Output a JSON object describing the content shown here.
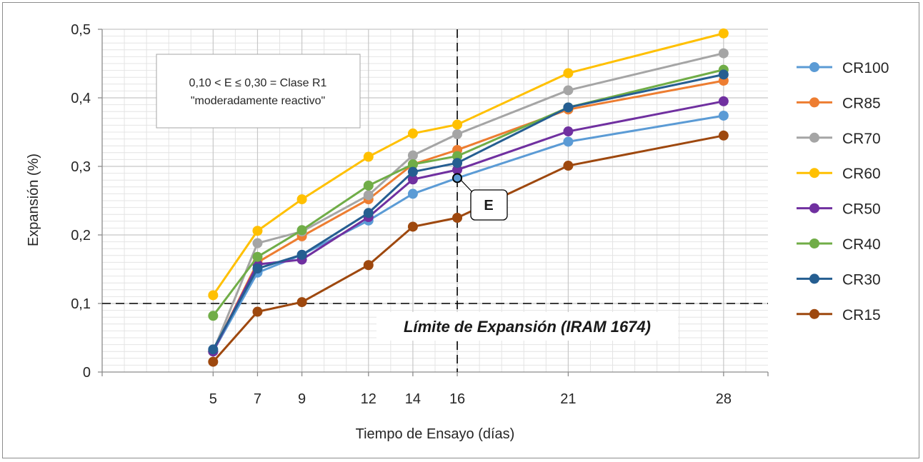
{
  "chart_data": {
    "type": "line",
    "xlabel": "Tiempo de Ensayo (días)",
    "ylabel": "Expansión (%)",
    "ylim": [
      0,
      0.5
    ],
    "xlim": [
      0,
      30
    ],
    "x_ticks": [
      5,
      7,
      9,
      12,
      14,
      16,
      21,
      28
    ],
    "y_ticks": [
      0,
      0.1,
      0.2,
      0.3,
      0.4,
      0.5
    ],
    "y_tick_labels": [
      "0",
      "0,1",
      "0,2",
      "0,3",
      "0,4",
      "0,5"
    ],
    "grid": true,
    "legend_position": "right",
    "series": [
      {
        "name": "CR100",
        "color": "#5b9bd5",
        "values": [
          0.03,
          0.145,
          0.171,
          0.221,
          0.26,
          0.283,
          0.336,
          0.374
        ]
      },
      {
        "name": "CR85",
        "color": "#ed7d31",
        "values": [
          0.03,
          0.16,
          0.198,
          0.252,
          0.303,
          0.324,
          0.383,
          0.425
        ]
      },
      {
        "name": "CR70",
        "color": "#a5a5a5",
        "values": [
          0.03,
          0.188,
          0.205,
          0.258,
          0.316,
          0.347,
          0.411,
          0.465
        ]
      },
      {
        "name": "CR60",
        "color": "#ffc000",
        "values": [
          0.112,
          0.206,
          0.252,
          0.314,
          0.348,
          0.361,
          0.436,
          0.494
        ]
      },
      {
        "name": "CR50",
        "color": "#7030a0",
        "values": [
          0.03,
          0.157,
          0.164,
          0.226,
          0.281,
          0.295,
          0.351,
          0.395
        ]
      },
      {
        "name": "CR40",
        "color": "#70ad47",
        "values": [
          0.082,
          0.168,
          0.207,
          0.272,
          0.303,
          0.315,
          0.386,
          0.441
        ]
      },
      {
        "name": "CR30",
        "color": "#255e91",
        "values": [
          0.033,
          0.151,
          0.171,
          0.232,
          0.292,
          0.305,
          0.386,
          0.434
        ]
      },
      {
        "name": "CR15",
        "color": "#9e480e",
        "values": [
          0.015,
          0.088,
          0.102,
          0.156,
          0.212,
          0.225,
          0.301,
          0.345
        ]
      }
    ],
    "limit_line": {
      "y": 0.1,
      "label": "Límite de Expansión (IRAM 1674)"
    },
    "vertical_line": {
      "x": 16
    },
    "annotation_box": {
      "line1": "0,10 < E ≤ 0,30 = Clase R1",
      "line2": "\"moderadamente reactivo\""
    },
    "point_callout": {
      "label": "E",
      "x": 16,
      "y": 0.283
    }
  }
}
